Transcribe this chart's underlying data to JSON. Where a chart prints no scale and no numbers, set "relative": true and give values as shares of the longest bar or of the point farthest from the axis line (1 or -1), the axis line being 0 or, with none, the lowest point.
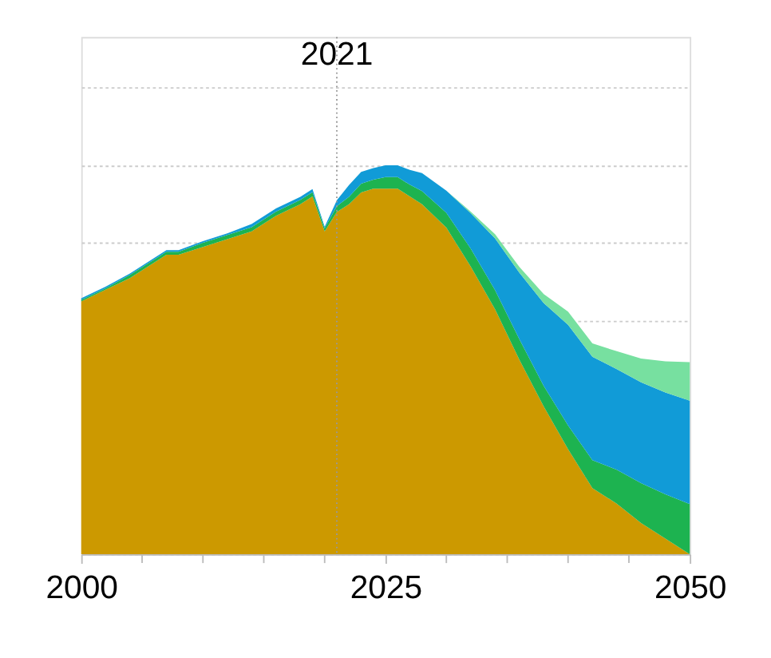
{
  "chart_data": {
    "type": "area",
    "stacked": true,
    "relative": true,
    "grid": "y",
    "legend": false,
    "x": [
      2000,
      2002,
      2004,
      2006,
      2007,
      2008,
      2010,
      2012,
      2014,
      2016,
      2018,
      2019,
      2020,
      2021,
      2022,
      2023,
      2024,
      2025,
      2026,
      2027,
      2028,
      2030,
      2032,
      2034,
      2036,
      2038,
      2040,
      2042,
      2044,
      2046,
      2048,
      2050
    ],
    "xlim": [
      2000,
      2050
    ],
    "xticks": [
      2000,
      {
        "value": 2005,
        "label": null
      },
      {
        "value": 2010,
        "label": null
      },
      {
        "value": 2015,
        "label": null
      },
      {
        "value": 2020,
        "label": null
      },
      2025,
      {
        "value": 2030,
        "label": null
      },
      {
        "value": 2035,
        "label": null
      },
      {
        "value": 2040,
        "label": null
      },
      {
        "value": 2045,
        "label": null
      },
      2050
    ],
    "series": [
      {
        "color": "#cc9900",
        "values": [
          0.65,
          0.68,
          0.71,
          0.75,
          0.77,
          0.77,
          0.79,
          0.81,
          0.83,
          0.87,
          0.9,
          0.92,
          0.83,
          0.88,
          0.9,
          0.93,
          0.94,
          0.94,
          0.94,
          0.92,
          0.9,
          0.84,
          0.74,
          0.63,
          0.5,
          0.38,
          0.27,
          0.17,
          0.13,
          0.08,
          0.04,
          0.0
        ]
      },
      {
        "color": "#1db350",
        "values": [
          0.004,
          0.004,
          0.008,
          0.008,
          0.008,
          0.008,
          0.011,
          0.011,
          0.011,
          0.011,
          0.011,
          0.011,
          0.008,
          0.015,
          0.019,
          0.023,
          0.023,
          0.03,
          0.03,
          0.03,
          0.034,
          0.038,
          0.046,
          0.049,
          0.053,
          0.053,
          0.061,
          0.072,
          0.087,
          0.103,
          0.114,
          0.129
        ]
      },
      {
        "color": "#119bd7",
        "values": [
          0.004,
          0.004,
          0.004,
          0.004,
          0.004,
          0.004,
          0.004,
          0.004,
          0.008,
          0.008,
          0.008,
          0.008,
          0.004,
          0.015,
          0.03,
          0.03,
          0.03,
          0.03,
          0.03,
          0.038,
          0.046,
          0.057,
          0.091,
          0.133,
          0.171,
          0.213,
          0.259,
          0.266,
          0.259,
          0.259,
          0.262,
          0.266
        ]
      },
      {
        "color": "#77e0a0",
        "values": [
          0,
          0,
          0,
          0,
          0,
          0,
          0,
          0,
          0,
          0,
          0,
          0,
          0,
          0,
          0,
          0,
          0,
          0,
          0,
          0,
          0,
          0,
          0.004,
          0.011,
          0.015,
          0.023,
          0.034,
          0.034,
          0.046,
          0.061,
          0.08,
          0.099
        ]
      }
    ],
    "ref_lines": [
      {
        "axis": "x",
        "value": 2021,
        "label": "2021",
        "color": "#999999",
        "line_style": "dotted"
      }
    ]
  }
}
